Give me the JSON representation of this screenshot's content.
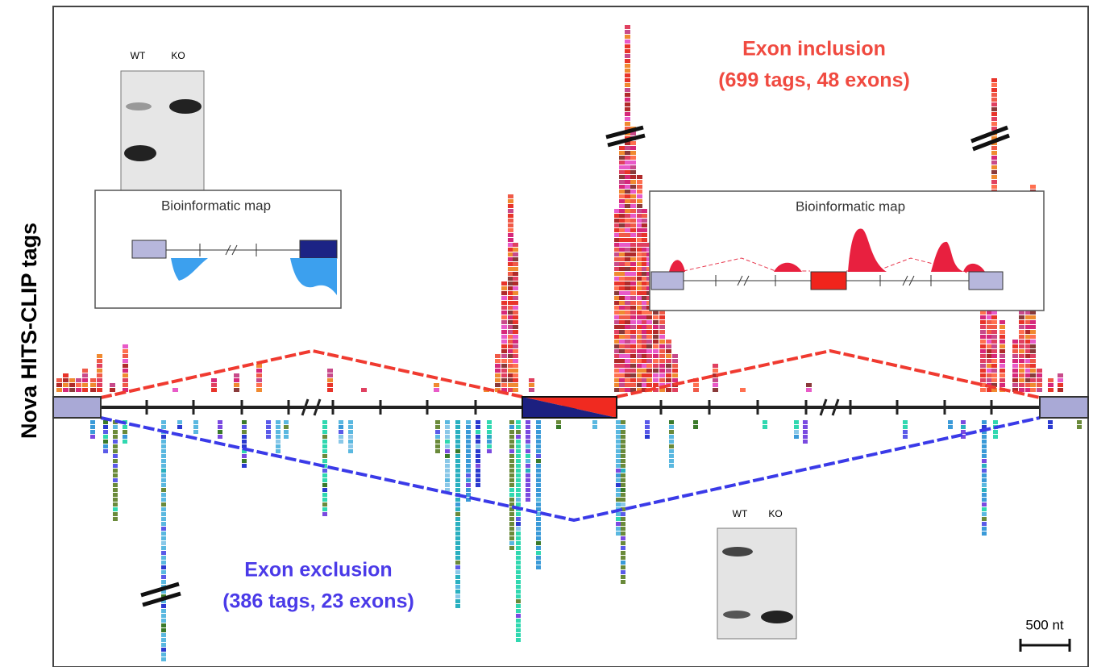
{
  "y_axis_label": "Nova HITS-CLIP tags",
  "inclusion": {
    "title": "Exon inclusion",
    "detail": "(699 tags, 48 exons)"
  },
  "exclusion": {
    "title": "Exon exclusion",
    "detail": "(386 tags, 23  exons)"
  },
  "gel_top": {
    "lanes": [
      "WT",
      "KO"
    ]
  },
  "gel_bottom": {
    "lanes": [
      "WT",
      "KO"
    ]
  },
  "map_left": {
    "title": "Bioinformatic map"
  },
  "map_right": {
    "title": "Bioinformatic map"
  },
  "scale_bar": {
    "label": "500 nt"
  }
}
